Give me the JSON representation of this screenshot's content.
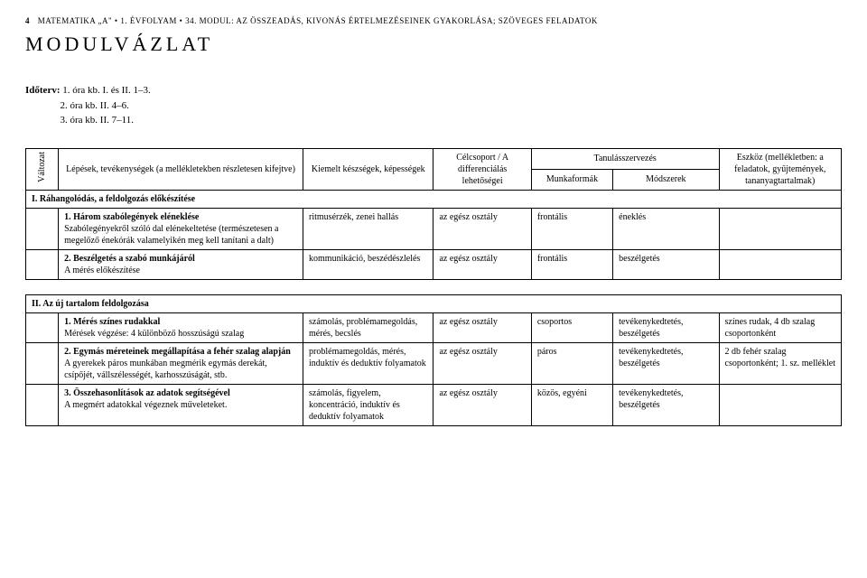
{
  "header": {
    "page_number": "4",
    "running_head": "MATEMATIKA „A\" • 1. ÉVFOLYAM • 34. MODUL: AZ ÖSSZEADÁS, KIVONÁS ÉRTELMEZÉSEINEK GYAKORLÁSA; SZÖVEGES FELADATOK"
  },
  "title": "MODULVÁZLAT",
  "schedule": {
    "label": "Időterv:",
    "lines": [
      "1. óra kb. I. és II. 1–3.",
      "2. óra kb. II. 4–6.",
      "3. óra kb. II. 7–11."
    ]
  },
  "table_headers": {
    "valtozat": "Változat",
    "steps": "Lépések, tevékenységek\n(a mellékletekben részletesen kifejtve)",
    "skills": "Kiemelt készségek, képességek",
    "target": "Célcsoport /\nA differenciálás lehetőségei",
    "org": "Tanulásszervezés",
    "forms": "Munkaformák",
    "methods": "Módszerek",
    "tool": "Eszköz\n(mellékletben: a feladatok, gyűjtemények, tananyagtartalmak)"
  },
  "sections": {
    "s1": {
      "title": "I. Ráhangolódás, a feldolgozás előkészítése"
    },
    "s2": {
      "title": "II. Az új tartalom feldolgozása"
    }
  },
  "rows": {
    "r1": {
      "step_bold": "1. Három szabólegények eléneklése",
      "step_rest": "Szabólegényekről szóló dal elénekeltetése (természetesen a megelőző énekórák valamelyikén meg kell tanítani a dalt)",
      "skills": "ritmusérzék, zenei hallás",
      "target": "az egész osztály",
      "forms": "frontális",
      "methods": "éneklés",
      "tool": ""
    },
    "r2": {
      "step_bold": "2. Beszélgetés a szabó munkájáról",
      "step_rest": "A mérés előkészítése",
      "skills": "kommunikáció, beszédészlelés",
      "target": "az egész osztály",
      "forms": "frontális",
      "methods": "beszélgetés",
      "tool": ""
    },
    "r3": {
      "step_bold": "1. Mérés színes rudakkal",
      "step_rest": "Mérések végzése: 4 különböző hosszúságú szalag",
      "skills": "számolás, problémamegoldás, mérés, becslés",
      "target": "az egész osztály",
      "forms": "csoportos",
      "methods": "tevékenykedtetés, beszélgetés",
      "tool": "színes rudak,\n4 db szalag csoportonként"
    },
    "r4": {
      "step_bold": "2. Egymás méreteinek megállapítása a fehér szalag alapján",
      "step_rest": "A gyerekek páros munkában megmérik egymás derekát, csípőjét, vállszélességét, karhosszúságát, stb.",
      "skills": "problémamegoldás, mérés, induktív és deduktív folyamatok",
      "target": "az egész osztály",
      "forms": "páros",
      "methods": "tevékenykedtetés, beszélgetés",
      "tool": "2 db fehér szalag csoportonként;\n1. sz. melléklet"
    },
    "r5": {
      "step_bold": "3. Összehasonlítások az adatok segítségével",
      "step_rest": "A megmért adatokkal végeznek műveleteket.",
      "skills": "számolás,\nfigyelem, koncentráció, induktív és deduktív folyamatok",
      "target": "az egész osztály",
      "forms": "közös, egyéni",
      "methods": "tevékenykedtetés, beszélgetés",
      "tool": ""
    }
  }
}
